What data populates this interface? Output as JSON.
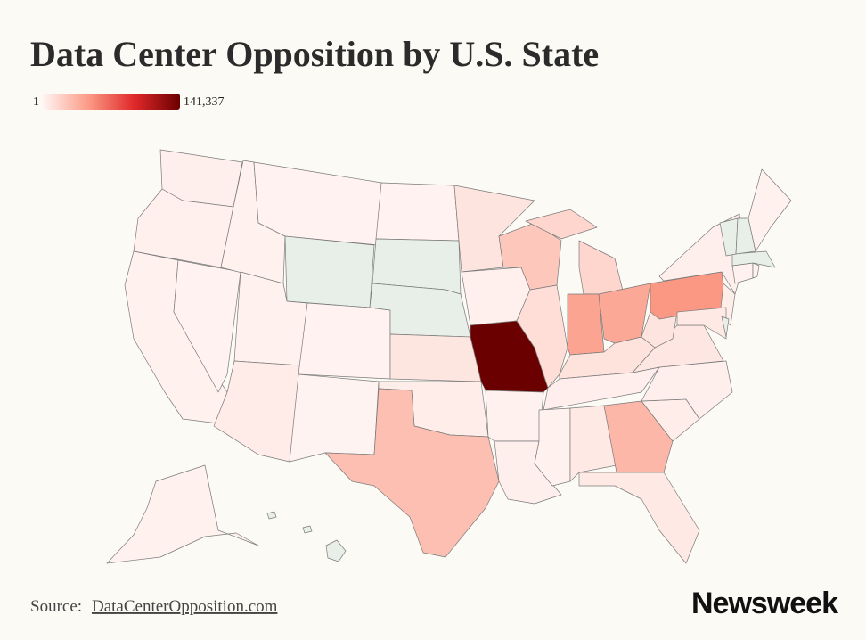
{
  "chart_data": {
    "type": "choropleth",
    "title": "Data Center Opposition by U.S. State",
    "colorbar": {
      "ticks": [
        1,
        {
          "value": 141337,
          "label": "141,337"
        }
      ],
      "colors": [
        "#fff5f3",
        "#fb9a85",
        "#e0282a",
        "#6b0000"
      ]
    },
    "null_color": "#e8efe9",
    "values": [
      3000,
      2500,
      2000,
      1500,
      2000,
      1500,
      null,
      2000,
      5000,
      1500,
      1000,
      1500,
      null,
      null,
      8000,
      4000,
      28000,
      9000,
      2500,
      141337,
      2000,
      3000,
      24000,
      12000,
      16000,
      42000,
      40000,
      10000,
      3500,
      2000,
      6000,
      32000,
      6000,
      4000,
      3000,
      7000,
      9000,
      48000,
      3000,
      4000,
      6000,
      null,
      2000,
      2000,
      null,
      null,
      null,
      2000,
      2000,
      null
    ]
  },
  "source": {
    "label": "Source:",
    "link": "DataCenterOpposition.com"
  },
  "brand": "Newsweek"
}
